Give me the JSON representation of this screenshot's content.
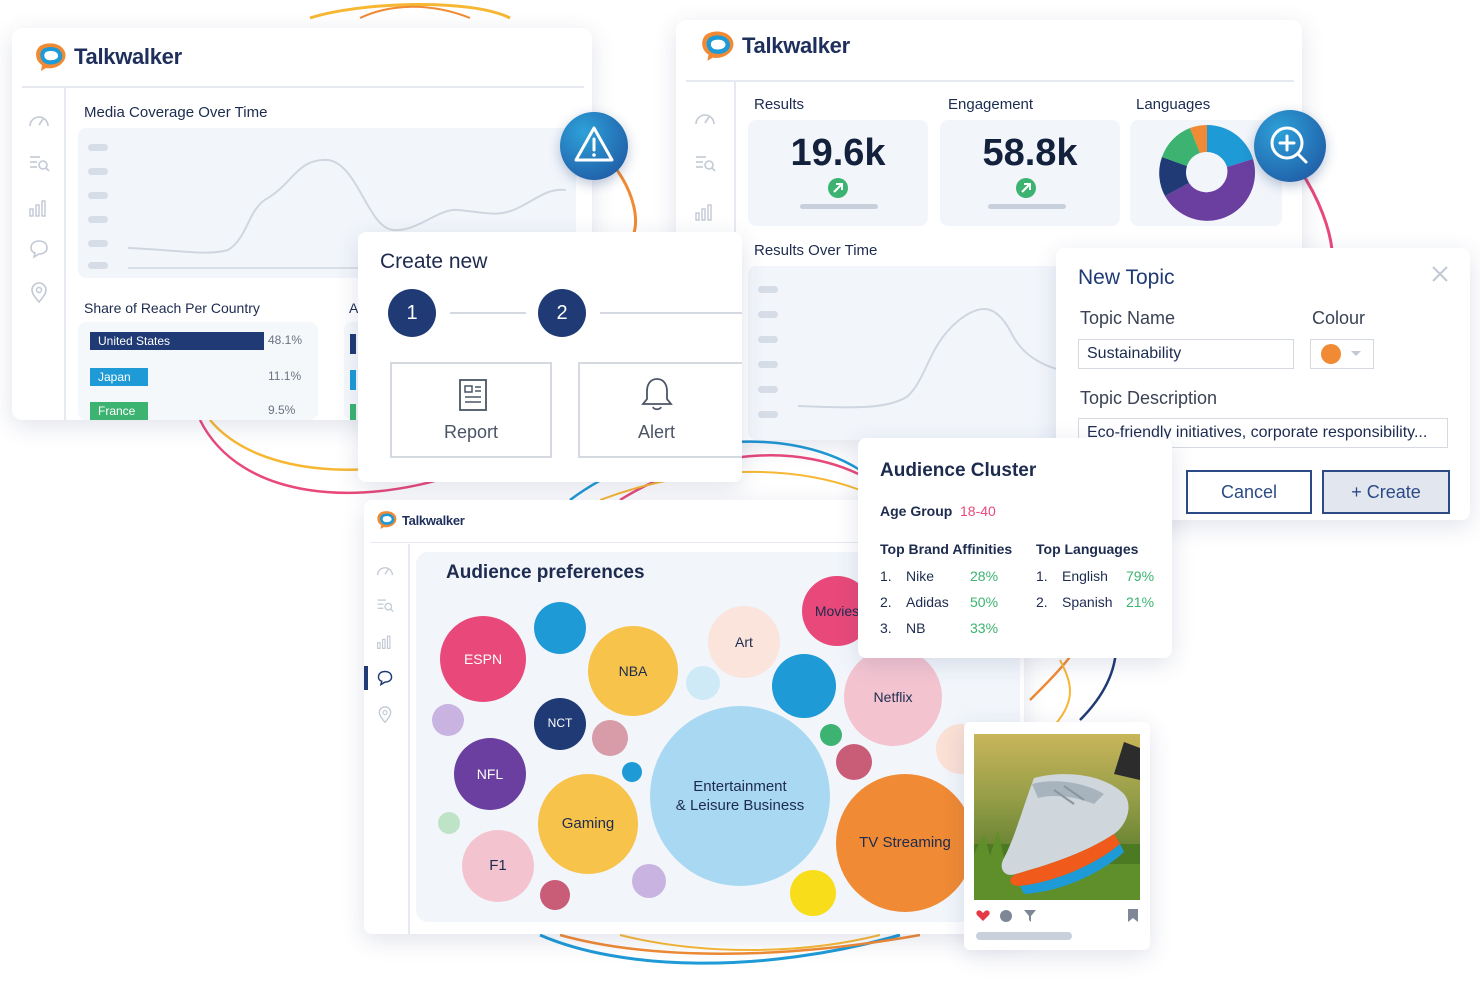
{
  "brand": "Talkwalker",
  "colors": {
    "navy": "#1f3a75",
    "blue": "#1e9ad6",
    "green": "#3cb371",
    "purple": "#6a3fa0",
    "orange": "#f08a34",
    "pink": "#e8497a",
    "yellow": "#f7c34a"
  },
  "media_card": {
    "title": "Media Coverage Over Time",
    "reach_title": "Share of Reach Per Country",
    "cut_title": "A",
    "countries": [
      {
        "name": "United States",
        "pct": "48.1%",
        "value": 48.1,
        "color": "#1f3a75"
      },
      {
        "name": "Japan",
        "pct": "11.1%",
        "value": 11.1,
        "color": "#1e9ad6"
      },
      {
        "name": "France",
        "pct": "9.5%",
        "value": 9.5,
        "color": "#3cb371"
      }
    ]
  },
  "alert_badge_icon": "warning-icon",
  "create_new": {
    "title": "Create new",
    "steps": [
      "1",
      "2"
    ],
    "options": [
      {
        "label": "Report",
        "icon": "report-icon"
      },
      {
        "label": "Alert",
        "icon": "bell-icon"
      }
    ]
  },
  "results_card": {
    "kpis": [
      {
        "label": "Results",
        "value": "19.6k"
      },
      {
        "label": "Engagement",
        "value": "58.8k"
      }
    ],
    "languages_label": "Languages",
    "over_time_title": "Results Over Time"
  },
  "zoom_badge_icon": "zoom-in-icon",
  "new_topic": {
    "title": "New Topic",
    "name_label": "Topic Name",
    "name_value": "Sustainability",
    "colour_label": "Colour",
    "colour_value": "#f08a34",
    "description_label": "Topic Description",
    "description_value": "Eco-friendly initiatives, corporate responsibility...",
    "cancel": "Cancel",
    "create": "+  Create"
  },
  "audience_cluster": {
    "title": "Audience Cluster",
    "age_label": "Age Group",
    "age_value": "18-40",
    "brands_title": "Top Brand Affinities",
    "brands": [
      {
        "rank": "1.",
        "name": "Nike",
        "pct": "28%"
      },
      {
        "rank": "2.",
        "name": "Adidas",
        "pct": "50%"
      },
      {
        "rank": "3.",
        "name": "NB",
        "pct": "33%"
      }
    ],
    "languages_title": "Top Languages",
    "languages": [
      {
        "rank": "1.",
        "name": "English",
        "pct": "79%"
      },
      {
        "rank": "2.",
        "name": "Spanish",
        "pct": "21%"
      }
    ]
  },
  "audience_prefs": {
    "title": "Audience preferences",
    "bubbles": {
      "espn": "ESPN",
      "nba": "NBA",
      "art": "Art",
      "movies": "Movies",
      "nct": "NCT",
      "netflix": "Netflix",
      "nfl": "NFL",
      "entertainment_1": "Entertainment",
      "entertainment_2": "& Leisure Business",
      "gaming": "Gaming",
      "tv_streaming": "TV Streaming",
      "f1": "F1"
    }
  }
}
